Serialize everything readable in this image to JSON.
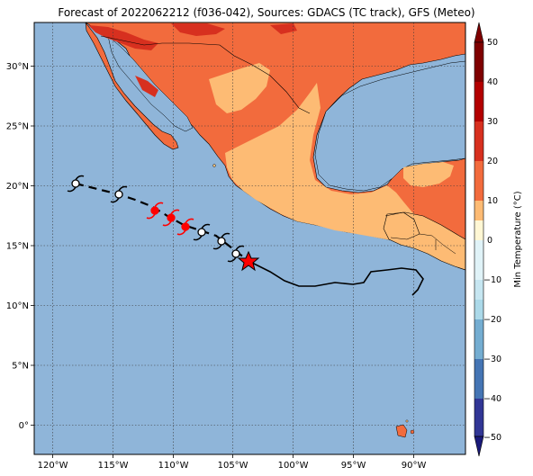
{
  "title": "Forecast of 2022062212 (f036-042), Sources: GDACS (TC track), GFS (Meteo)",
  "map": {
    "lon_ticks": [
      "120°W",
      "115°W",
      "110°W",
      "105°W",
      "100°W",
      "95°W",
      "90°W"
    ],
    "lat_ticks": [
      "30°N",
      "25°N",
      "20°N",
      "15°N",
      "10°N",
      "5°N",
      "0°"
    ],
    "colors": {
      "ocean": "#8fb5d9",
      "land_warm": "#f26b3d",
      "land_mild": "#fdbb74",
      "land_hot": "#d7301f",
      "track_black": "#000000",
      "track_red": "#ff0000",
      "star": "#ff0000"
    }
  },
  "colorbar": {
    "label": "Min Temperature (°C)",
    "ticks": [
      "50",
      "40",
      "30",
      "20",
      "10",
      "0",
      "−10",
      "−20",
      "−30",
      "−40",
      "−50"
    ],
    "colors": [
      "#7f0000",
      "#b30000",
      "#d7301f",
      "#f26b3d",
      "#fdbb74",
      "#fff7d4",
      "#e0f3f8",
      "#abd9e9",
      "#74add1",
      "#4575b4",
      "#313695",
      "#1a1a7a"
    ]
  },
  "track": {
    "marker_symbol": "hurricane-symbol",
    "current_position_symbol": "star-icon"
  }
}
